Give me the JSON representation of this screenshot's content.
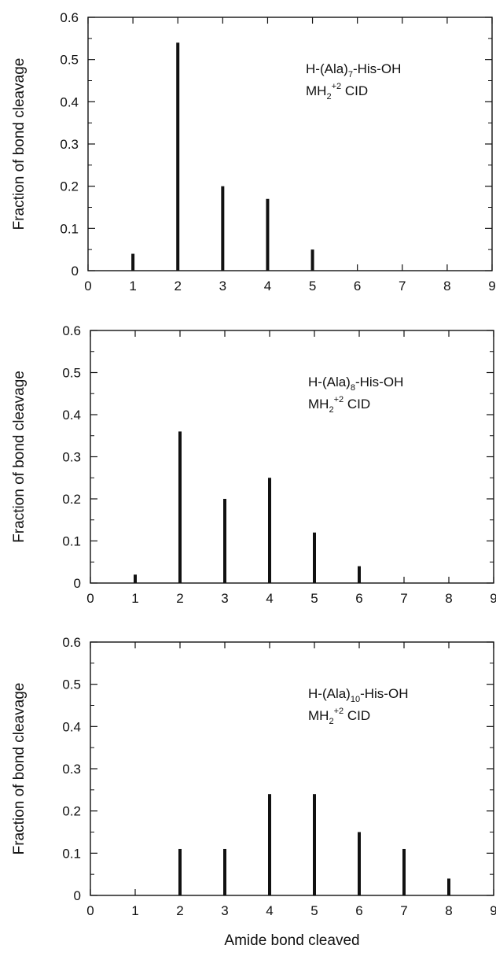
{
  "chart_data": [
    {
      "type": "bar",
      "ylabel": "Fraction of bond cleavage",
      "xlabel": "",
      "annotation": {
        "line1_prefix": "H-(Ala)",
        "line1_sub": "7",
        "line1_suffix": "-His-OH",
        "line2_prefix": "MH",
        "line2_sub": "2",
        "line2_sup": "+2",
        "line2_suffix": " CID"
      },
      "xlim": [
        0,
        9
      ],
      "ylim": [
        0,
        0.6
      ],
      "xticks": [
        "0",
        "1",
        "2",
        "3",
        "4",
        "5",
        "6",
        "7",
        "8",
        "9"
      ],
      "yticks": [
        "0",
        "0.1",
        "0.2",
        "0.3",
        "0.4",
        "0.5",
        "0.6"
      ],
      "x": [
        1,
        2,
        3,
        4,
        5
      ],
      "values": [
        0.04,
        0.54,
        0.2,
        0.17,
        0.05
      ]
    },
    {
      "type": "bar",
      "ylabel": "Fraction of bond cleavage",
      "xlabel": "",
      "annotation": {
        "line1_prefix": "H-(Ala)",
        "line1_sub": "8",
        "line1_suffix": "-His-OH",
        "line2_prefix": "MH",
        "line2_sub": "2",
        "line2_sup": "+2",
        "line2_suffix": " CID"
      },
      "xlim": [
        0,
        9
      ],
      "ylim": [
        0,
        0.6
      ],
      "xticks": [
        "0",
        "1",
        "2",
        "3",
        "4",
        "5",
        "6",
        "7",
        "8",
        "9"
      ],
      "yticks": [
        "0",
        "0.1",
        "0.2",
        "0.3",
        "0.4",
        "0.5",
        "0.6"
      ],
      "x": [
        1,
        2,
        3,
        4,
        5,
        6
      ],
      "values": [
        0.02,
        0.36,
        0.2,
        0.25,
        0.12,
        0.04
      ]
    },
    {
      "type": "bar",
      "ylabel": "Fraction of bond cleavage",
      "xlabel": "Amide bond cleaved",
      "annotation": {
        "line1_prefix": "H-(Ala)",
        "line1_sub": "10",
        "line1_suffix": "-His-OH",
        "line2_prefix": "MH",
        "line2_sub": "2",
        "line2_sup": "+2",
        "line2_suffix": " CID"
      },
      "xlim": [
        0,
        9
      ],
      "ylim": [
        0,
        0.6
      ],
      "xticks": [
        "0",
        "1",
        "2",
        "3",
        "4",
        "5",
        "6",
        "7",
        "8",
        "9"
      ],
      "yticks": [
        "0",
        "0.1",
        "0.2",
        "0.3",
        "0.4",
        "0.5",
        "0.6"
      ],
      "x": [
        2,
        3,
        4,
        5,
        6,
        7,
        8
      ],
      "values": [
        0.11,
        0.11,
        0.24,
        0.24,
        0.15,
        0.11,
        0.04
      ]
    }
  ]
}
